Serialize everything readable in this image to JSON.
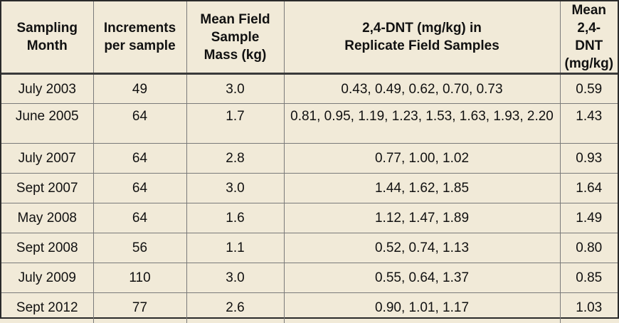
{
  "table": {
    "headers": [
      "Sampling\nMonth",
      "Increments\nper sample",
      "Mean Field\nSample\nMass (kg)",
      "2,4-DNT (mg/kg) in\nReplicate Field Samples",
      "Mean 2,4-\nDNT\n(mg/kg)"
    ],
    "rows": [
      [
        "July 2003",
        "49",
        "3.0",
        "0.43, 0.49, 0.62, 0.70, 0.73",
        "0.59"
      ],
      [
        "June 2005",
        "64",
        "1.7",
        "0.81, 0.95, 1.19, 1.23, 1.53, 1.63, 1.93, 2.20",
        "1.43"
      ],
      [
        "July 2007",
        "64",
        "2.8",
        "0.77, 1.00, 1.02",
        "0.93"
      ],
      [
        "Sept 2007",
        "64",
        "3.0",
        "1.44, 1.62, 1.85",
        "1.64"
      ],
      [
        "May 2008",
        "64",
        "1.6",
        "1.12, 1.47, 1.89",
        "1.49"
      ],
      [
        "Sept 2008",
        "56",
        "1.1",
        "0.52, 0.74, 1.13",
        "0.80"
      ],
      [
        "July 2009",
        "110",
        "3.0",
        "0.55, 0.64, 1.37",
        "0.85"
      ],
      [
        "Sept 2012",
        "77",
        "2.6",
        "0.90, 1.01, 1.17",
        "1.03"
      ]
    ]
  },
  "colors": {
    "background": "#f1ead8",
    "border": "#7a7a7a",
    "text": "#111111"
  }
}
